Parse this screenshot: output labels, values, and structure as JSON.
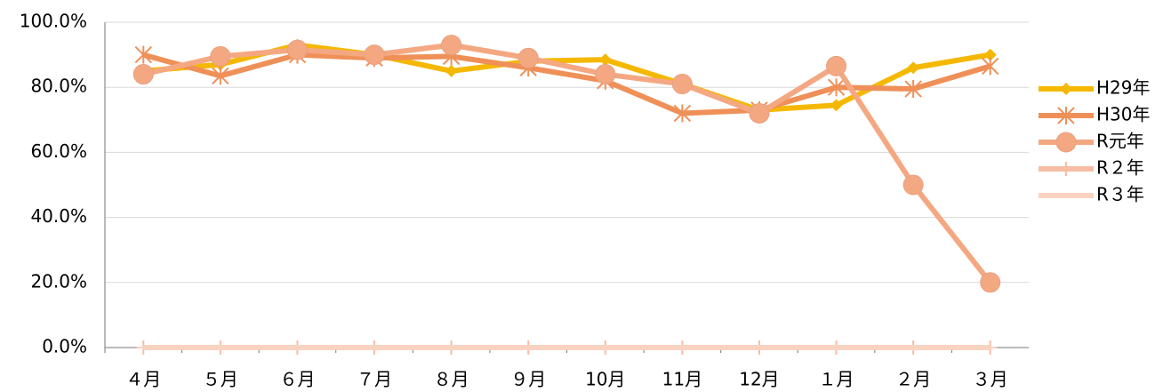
{
  "chart_data": {
    "type": "line",
    "categories": [
      "４月",
      "５月",
      "６月",
      "７月",
      "８月",
      "９月",
      "10月",
      "11月",
      "12月",
      "１月",
      "２月",
      "３月"
    ],
    "series": [
      {
        "name": "H29年",
        "color": "#f5b800",
        "marker": "diamond",
        "values": [
          85,
          87,
          93,
          90,
          85,
          88,
          88.5,
          81,
          73,
          74.5,
          86,
          90
        ]
      },
      {
        "name": "H30年",
        "color": "#ef9058",
        "marker": "star",
        "values": [
          90,
          83.5,
          90,
          89,
          89.5,
          86,
          82,
          72,
          73,
          80,
          79.5,
          86.5
        ]
      },
      {
        "name": "R元年",
        "color": "#f4a882",
        "marker": "circle",
        "values": [
          84,
          89.5,
          91.5,
          90,
          93,
          89,
          84,
          81,
          72,
          86.5,
          50,
          20
        ]
      },
      {
        "name": "R２年",
        "color": "#f7bda4",
        "marker": "plus",
        "values": [
          0,
          0,
          0,
          0,
          0,
          0,
          0,
          0,
          0,
          0,
          0,
          0
        ]
      },
      {
        "name": "R３年",
        "color": "#f9d3c0",
        "marker": "dash",
        "values": [
          0,
          0,
          0,
          0,
          0,
          0,
          0,
          0,
          0,
          0,
          0,
          0
        ]
      }
    ],
    "ylim": [
      0,
      100
    ],
    "yticks": [
      {
        "value": 0,
        "label": "0.0%"
      },
      {
        "value": 20,
        "label": "20.0%"
      },
      {
        "value": 40,
        "label": "40.0%"
      },
      {
        "value": 60,
        "label": "60.0%"
      },
      {
        "value": 80,
        "label": "80.0%"
      },
      {
        "value": 100,
        "label": "100.0%"
      }
    ],
    "grid": true,
    "legend": "right"
  }
}
